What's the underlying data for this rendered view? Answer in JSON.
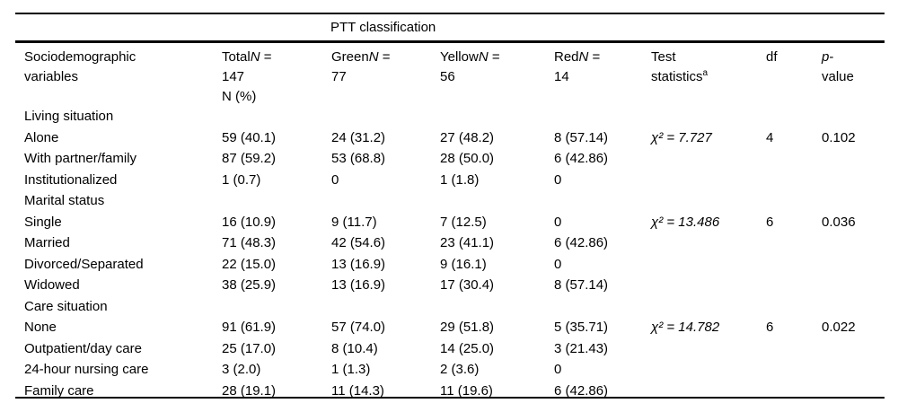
{
  "colors": {
    "background": "#ffffff",
    "text": "#000000",
    "rule": "#000000"
  },
  "table": {
    "spanner": "PTT classification",
    "columns": [
      {
        "name": "sociodemographic-variables",
        "lines": [
          [
            {
              "t": "Sociodemographic"
            }
          ],
          [
            {
              "t": "variables"
            }
          ]
        ]
      },
      {
        "name": "total",
        "lines": [
          [
            {
              "t": "Total"
            },
            {
              "t": "N",
              "i": true
            },
            {
              "t": " ="
            }
          ],
          [
            {
              "t": "147"
            }
          ],
          [
            {
              "t": "N (%)"
            }
          ]
        ]
      },
      {
        "name": "green",
        "lines": [
          [
            {
              "t": "Green"
            },
            {
              "t": "N",
              "i": true
            },
            {
              "t": " ="
            }
          ],
          [
            {
              "t": "77"
            }
          ]
        ]
      },
      {
        "name": "yellow",
        "lines": [
          [
            {
              "t": "Yellow"
            },
            {
              "t": "N",
              "i": true
            },
            {
              "t": " ="
            }
          ],
          [
            {
              "t": "56"
            }
          ]
        ]
      },
      {
        "name": "red",
        "lines": [
          [
            {
              "t": "Red"
            },
            {
              "t": "N",
              "i": true
            },
            {
              "t": " ="
            }
          ],
          [
            {
              "t": "14"
            }
          ]
        ]
      },
      {
        "name": "test-statistics",
        "lines": [
          [
            {
              "t": "Test"
            }
          ],
          [
            {
              "t": "statistics"
            },
            {
              "t": "a",
              "sup": true
            }
          ]
        ]
      },
      {
        "name": "df",
        "lines": [
          [
            {
              "t": "df"
            }
          ]
        ]
      },
      {
        "name": "p-value",
        "lines": [
          [
            {
              "t": "p",
              "i": true
            },
            {
              "t": "-"
            }
          ],
          [
            {
              "t": "value"
            }
          ]
        ]
      }
    ],
    "rows": [
      {
        "section": true,
        "cells": [
          "Living situation",
          "",
          "",
          "",
          "",
          "",
          "",
          ""
        ]
      },
      {
        "section": false,
        "cells": [
          "Alone",
          "59 (40.1)",
          "24 (31.2)",
          "27 (48.2)",
          "8 (57.14)",
          [
            {
              "t": "χ² = 7.727",
              "i": true
            }
          ],
          "4",
          "0.102"
        ]
      },
      {
        "section": false,
        "cells": [
          "With partner/family",
          "87 (59.2)",
          "53 (68.8)",
          "28 (50.0)",
          "6 (42.86)",
          "",
          "",
          ""
        ]
      },
      {
        "section": false,
        "cells": [
          "Institutionalized",
          "1 (0.7)",
          "0",
          "1 (1.8)",
          "0",
          "",
          "",
          ""
        ]
      },
      {
        "section": true,
        "cells": [
          "Marital status",
          "",
          "",
          "",
          "",
          "",
          "",
          ""
        ]
      },
      {
        "section": false,
        "cells": [
          "Single",
          "16 (10.9)",
          "9 (11.7)",
          "7 (12.5)",
          "0",
          [
            {
              "t": "χ² = 13.486",
              "i": true
            }
          ],
          "6",
          "0.036"
        ]
      },
      {
        "section": false,
        "cells": [
          "Married",
          "71 (48.3)",
          "42 (54.6)",
          "23 (41.1)",
          "6 (42.86)",
          "",
          "",
          ""
        ]
      },
      {
        "section": false,
        "cells": [
          "Divorced/Separated",
          "22 (15.0)",
          "13 (16.9)",
          "9 (16.1)",
          "0",
          "",
          "",
          ""
        ]
      },
      {
        "section": false,
        "cells": [
          "Widowed",
          "38 (25.9)",
          "13 (16.9)",
          "17 (30.4)",
          "8 (57.14)",
          "",
          "",
          ""
        ]
      },
      {
        "section": true,
        "cells": [
          "Care situation",
          "",
          "",
          "",
          "",
          "",
          "",
          ""
        ]
      },
      {
        "section": false,
        "cells": [
          "None",
          "91 (61.9)",
          "57 (74.0)",
          "29 (51.8)",
          "5 (35.71)",
          [
            {
              "t": "χ² = 14.782",
              "i": true
            }
          ],
          "6",
          "0.022"
        ]
      },
      {
        "section": false,
        "cells": [
          "Outpatient/day care",
          "25 (17.0)",
          "8 (10.4)",
          "14 (25.0)",
          "3 (21.43)",
          "",
          "",
          ""
        ]
      },
      {
        "section": false,
        "cells": [
          "24-hour nursing care",
          "3 (2.0)",
          "1 (1.3)",
          "2 (3.6)",
          "0",
          "",
          "",
          ""
        ]
      },
      {
        "section": false,
        "cells": [
          "Family care",
          "28 (19.1)",
          "11 (14.3)",
          "11 (19.6)",
          "6 (42.86)",
          "",
          "",
          ""
        ]
      }
    ]
  }
}
